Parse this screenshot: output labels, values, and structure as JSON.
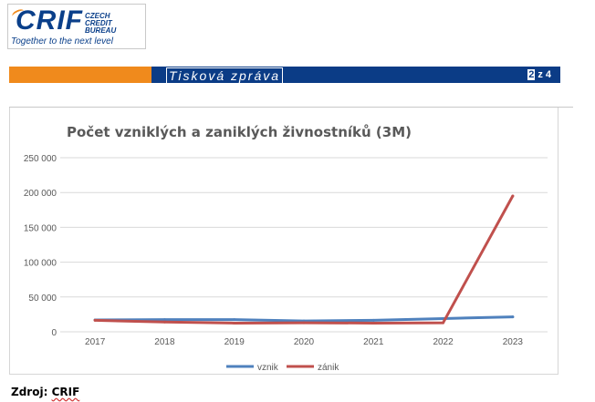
{
  "header": {
    "logo_text": "CRIF",
    "logo_sub_lines": [
      "CZECH",
      "CREDIT",
      "BUREAU"
    ],
    "logo_tagline": "Together to the next level",
    "banner_title": "Tisková zpráva",
    "page_current": "2",
    "page_suffix": "z 4"
  },
  "colors": {
    "orange": "#f08a1c",
    "navy": "#0b3c86",
    "series_vznik": "#4f81bd",
    "series_zanik": "#c0504d"
  },
  "chart_data": {
    "type": "line",
    "title": "Počet vzniklých a zaniklých živnostníků (3M)",
    "x": [
      "2017",
      "2018",
      "2019",
      "2020",
      "2021",
      "2022",
      "2023"
    ],
    "ylim": [
      0,
      250000
    ],
    "yticks": [
      0,
      50000,
      100000,
      150000,
      200000,
      250000
    ],
    "ytick_labels": [
      "0",
      "50 000",
      "100 000",
      "150 000",
      "200 000",
      "250 000"
    ],
    "grid": true,
    "legend": "bottom",
    "series": [
      {
        "name": "vznik",
        "values": [
          17000,
          17500,
          17500,
          15500,
          16500,
          19000,
          21500
        ]
      },
      {
        "name": "zánik",
        "values": [
          16500,
          14000,
          12500,
          13000,
          12500,
          13000,
          195000
        ]
      }
    ]
  },
  "footer": {
    "source_label": "Zdroj:",
    "source_name": "CRIF"
  }
}
